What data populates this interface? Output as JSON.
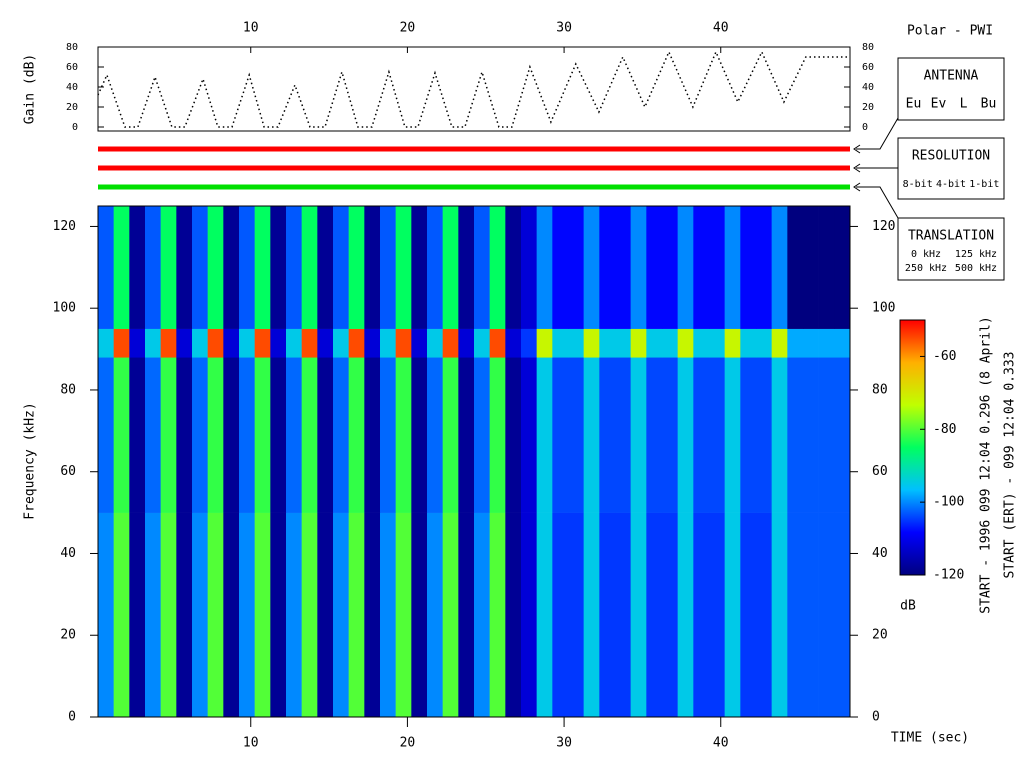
{
  "header": {
    "title": "Polar - PWI"
  },
  "chart_data": [
    {
      "type": "line",
      "y_label": "Gain (dB)",
      "color": "#000000",
      "line_style": "dotted",
      "x": [
        0.25,
        0.82,
        1.97,
        2.8,
        3.89,
        4.97,
        5.8,
        6.95,
        7.9,
        8.8,
        9.9,
        10.85,
        11.74,
        12.82,
        13.78,
        14.74,
        15.82,
        16.84,
        17.73,
        18.82,
        19.84,
        20.67,
        21.76,
        22.84,
        23.67,
        24.76,
        25.84,
        26.67,
        27.82,
        29.16,
        30.75,
        32.22,
        33.75,
        35.16,
        36.69,
        38.22,
        39.69,
        41.09,
        42.62,
        44.03,
        45.43,
        48.25
      ],
      "values": [
        32,
        52,
        0,
        0,
        50,
        0,
        0,
        48,
        0,
        0,
        52,
        0,
        0,
        42,
        0,
        0,
        55,
        0,
        0,
        55,
        0,
        0,
        54,
        0,
        0,
        55,
        0,
        0,
        60,
        5,
        63,
        15,
        70,
        20,
        75,
        20,
        75,
        25,
        75,
        25,
        70,
        70
      ],
      "xlim": [
        0.25,
        48.25
      ],
      "xticks": [
        10,
        20,
        30,
        40
      ],
      "ylim": [
        -4,
        80
      ],
      "yticks": [
        0,
        20,
        40,
        60,
        80
      ]
    },
    {
      "type": "heatmap",
      "x_label": "TIME (sec)",
      "y_label": "Frequency (kHz)",
      "colorbar_label": "dB",
      "bins": [
        0.25,
        1.25,
        2.25,
        3.25,
        4.25,
        5.25,
        6.25,
        7.25,
        8.25,
        9.25,
        10.25,
        11.25,
        12.25,
        13.25,
        14.25,
        15.25,
        16.25,
        17.25,
        18.25,
        19.25,
        20.25,
        21.25,
        22.25,
        23.25,
        24.25,
        25.25,
        26.25,
        27.25,
        28.25,
        29.25,
        30.25,
        31.25,
        32.25,
        33.25,
        34.25,
        35.25,
        36.25,
        37.25,
        38.25,
        39.25,
        40.25,
        41.25,
        42.25,
        43.25,
        44.25,
        45.25,
        46.25,
        47.25,
        48.25
      ],
      "y_bins": [
        0,
        50,
        88,
        95,
        125
      ],
      "z": [
        [
          -100,
          -80,
          -118,
          -100,
          -80,
          -118,
          -100,
          -80,
          -118,
          -100,
          -80,
          -118,
          -100,
          -80,
          -118,
          -100,
          -80,
          -118,
          -100,
          -80,
          -118,
          -100,
          -80,
          -118,
          -100,
          -80,
          -118,
          -112,
          -95,
          -105,
          -105,
          -95,
          -105,
          -105,
          -95,
          -105,
          -105,
          -95,
          -105,
          -105,
          -95,
          -105,
          -105,
          -95,
          -103,
          -103,
          -103,
          -103
        ],
        [
          -102,
          -82,
          -118,
          -102,
          -82,
          -118,
          -102,
          -82,
          -118,
          -102,
          -82,
          -118,
          -102,
          -82,
          -118,
          -102,
          -82,
          -118,
          -102,
          -82,
          -118,
          -102,
          -82,
          -118,
          -102,
          -82,
          -118,
          -112,
          -95,
          -104,
          -104,
          -95,
          -104,
          -104,
          -95,
          -104,
          -104,
          -95,
          -104,
          -104,
          -95,
          -104,
          -104,
          -95,
          -103,
          -103,
          -103,
          -103
        ],
        [
          -95,
          -55,
          -112,
          -95,
          -55,
          -112,
          -95,
          -55,
          -112,
          -95,
          -55,
          -112,
          -95,
          -55,
          -112,
          -95,
          -55,
          -112,
          -95,
          -55,
          -112,
          -95,
          -55,
          -112,
          -95,
          -55,
          -112,
          -105,
          -72,
          -95,
          -95,
          -72,
          -95,
          -95,
          -72,
          -95,
          -95,
          -72,
          -95,
          -95,
          -72,
          -95,
          -95,
          -72,
          -98,
          -98,
          -98,
          -98
        ],
        [
          -103,
          -85,
          -118,
          -103,
          -85,
          -118,
          -103,
          -85,
          -118,
          -103,
          -85,
          -118,
          -103,
          -85,
          -118,
          -103,
          -85,
          -118,
          -103,
          -85,
          -118,
          -103,
          -85,
          -118,
          -103,
          -85,
          -118,
          -112,
          -100,
          -108,
          -108,
          -100,
          -108,
          -108,
          -100,
          -108,
          -108,
          -100,
          -108,
          -108,
          -100,
          -108,
          -108,
          -100,
          -120,
          -120,
          -120,
          -120
        ]
      ],
      "xlim": [
        0.25,
        48.25
      ],
      "xticks": [
        10,
        20,
        30,
        40
      ],
      "ylim": [
        0,
        125
      ],
      "yticks": [
        0,
        20,
        40,
        60,
        80,
        100,
        120
      ],
      "clim": [
        -120,
        -50
      ],
      "cticks": [
        -60,
        -80,
        -100,
        -120
      ],
      "colormap": [
        "#00007f",
        "#0000ff",
        "#00c0ff",
        "#00ff60",
        "#c0ff00",
        "#ffb000",
        "#ff0000"
      ]
    }
  ],
  "legends": [
    {
      "title": "ANTENNA",
      "items": [
        {
          "label": "Eu",
          "color": "#ff0000"
        },
        {
          "label": "Ev",
          "color": "#00e000"
        },
        {
          "label": "L",
          "color": "#0000ff"
        },
        {
          "label": "Bu",
          "color": "#000000"
        }
      ]
    },
    {
      "title": "RESOLUTION",
      "items": [
        {
          "label": "8-bit",
          "color": "#ff0000"
        },
        {
          "label": "4-bit",
          "color": "#00e000"
        },
        {
          "label": "1-bit",
          "color": "#0000ff"
        }
      ]
    },
    {
      "title": "TRANSLATION",
      "items": [
        {
          "label": "0 kHz",
          "color": "#ff0000"
        },
        {
          "label": "125 kHz",
          "color": "#00e000"
        },
        {
          "label": "250 kHz",
          "color": "#0000ff"
        },
        {
          "label": "500 kHz",
          "color": "#000000"
        }
      ]
    }
  ],
  "annotations": {
    "start": "START - 1996 099 12:04 0.296 (8 April)",
    "start_ert": "START (ERT) - 099 12:04 0.333"
  }
}
